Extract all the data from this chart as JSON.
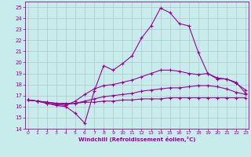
{
  "xlabel": "Windchill (Refroidissement éolien,°C)",
  "background_color": "#c8ecec",
  "grid_color": "#b0c8c8",
  "line_color": "#990099",
  "x_ticks": [
    0,
    1,
    2,
    3,
    4,
    5,
    6,
    7,
    8,
    9,
    10,
    11,
    12,
    13,
    14,
    15,
    16,
    17,
    18,
    19,
    20,
    21,
    22,
    23
  ],
  "ylim": [
    14,
    25.5
  ],
  "xlim": [
    -0.3,
    23.3
  ],
  "yticks": [
    14,
    15,
    16,
    17,
    18,
    19,
    20,
    21,
    22,
    23,
    24,
    25
  ],
  "line1_x": [
    0,
    1,
    2,
    3,
    4,
    5,
    6,
    7,
    8,
    9,
    10,
    11,
    12,
    13,
    14,
    15,
    16,
    17,
    18,
    19,
    20,
    21,
    22,
    23
  ],
  "line1_y": [
    16.6,
    16.5,
    16.3,
    16.1,
    16.0,
    15.4,
    14.5,
    17.4,
    19.7,
    19.3,
    19.9,
    20.6,
    22.2,
    23.3,
    24.9,
    24.5,
    23.5,
    23.3,
    20.9,
    19.0,
    18.5,
    18.5,
    18.1,
    17.5
  ],
  "line2_x": [
    0,
    1,
    2,
    3,
    4,
    5,
    6,
    7,
    8,
    9,
    10,
    11,
    12,
    13,
    14,
    15,
    16,
    17,
    18,
    19,
    20,
    21,
    22,
    23
  ],
  "line2_y": [
    16.6,
    16.5,
    16.3,
    16.2,
    16.1,
    16.5,
    17.1,
    17.6,
    17.9,
    18.0,
    18.2,
    18.4,
    18.7,
    19.0,
    19.3,
    19.3,
    19.2,
    19.0,
    18.9,
    19.0,
    18.6,
    18.5,
    18.2,
    17.2
  ],
  "line3_x": [
    0,
    1,
    2,
    3,
    4,
    5,
    6,
    7,
    8,
    9,
    10,
    11,
    12,
    13,
    14,
    15,
    16,
    17,
    18,
    19,
    20,
    21,
    22,
    23
  ],
  "line3_y": [
    16.6,
    16.5,
    16.4,
    16.3,
    16.2,
    16.3,
    16.5,
    16.7,
    16.9,
    17.0,
    17.1,
    17.2,
    17.4,
    17.5,
    17.6,
    17.7,
    17.7,
    17.8,
    17.9,
    17.9,
    17.8,
    17.6,
    17.3,
    17.1
  ],
  "line4_x": [
    0,
    1,
    2,
    3,
    4,
    5,
    6,
    7,
    8,
    9,
    10,
    11,
    12,
    13,
    14,
    15,
    16,
    17,
    18,
    19,
    20,
    21,
    22,
    23
  ],
  "line4_y": [
    16.6,
    16.5,
    16.4,
    16.3,
    16.3,
    16.3,
    16.4,
    16.4,
    16.5,
    16.5,
    16.6,
    16.6,
    16.7,
    16.7,
    16.7,
    16.8,
    16.8,
    16.8,
    16.8,
    16.8,
    16.8,
    16.8,
    16.8,
    16.8
  ]
}
